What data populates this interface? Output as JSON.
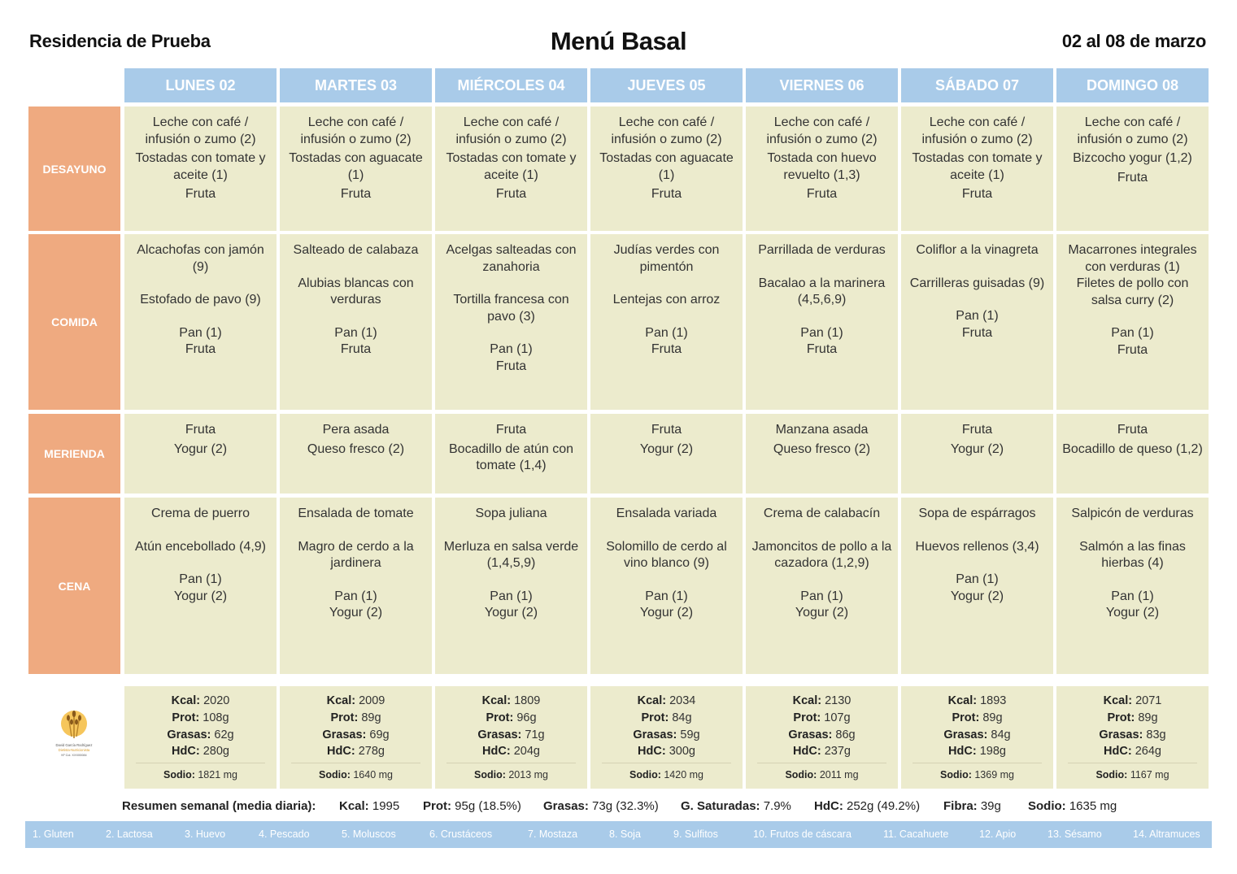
{
  "header": {
    "residence": "Residencia de Prueba",
    "title": "Menú Basal",
    "date_range": "02 al 08 de marzo"
  },
  "days": [
    "LUNES 02",
    "MARTES 03",
    "MIÉRCOLES 04",
    "JUEVES 05",
    "VIERNES 06",
    "SÁBADO 07",
    "DOMINGO 08"
  ],
  "meals": [
    "DESAYUNO",
    "COMIDA",
    "MERIENDA",
    "CENA"
  ],
  "menu": {
    "desayuno": [
      [
        "Leche con café / infusión o zumo (2)",
        "Tostadas con tomate y aceite (1)",
        "Fruta"
      ],
      [
        "Leche con café / infusión o zumo (2)",
        "Tostadas con aguacate (1)",
        "Fruta"
      ],
      [
        "Leche con café / infusión o zumo (2)",
        "Tostadas con tomate y aceite (1)",
        "Fruta"
      ],
      [
        "Leche con café / infusión o zumo (2)",
        "Tostadas con aguacate (1)",
        "Fruta"
      ],
      [
        "Leche con café / infusión o zumo (2)",
        "Tostada con huevo revuelto (1,3)",
        "Fruta"
      ],
      [
        "Leche con café / infusión o zumo (2)",
        "Tostadas con tomate y aceite (1)",
        "Fruta"
      ],
      [
        "Leche con café / infusión o zumo (2)",
        "Bizcocho yogur (1,2)",
        "Fruta"
      ]
    ],
    "comida": [
      [
        "Alcachofas con jamón (9)",
        "Estofado de pavo (9)",
        "Pan (1)",
        "Fruta"
      ],
      [
        "Salteado de calabaza",
        "Alubias blancas con verduras",
        "Pan (1)",
        "Fruta"
      ],
      [
        "Acelgas salteadas con zanahoria",
        "Tortilla francesa con pavo (3)",
        "Pan (1)",
        "Fruta"
      ],
      [
        "Judías verdes con pimentón",
        "Lentejas con arroz",
        "Pan (1)",
        "Fruta"
      ],
      [
        "Parrillada de verduras",
        "Bacalao a la marinera (4,5,6,9)",
        "Pan (1)",
        "Fruta"
      ],
      [
        "Coliflor a la vinagreta",
        "Carrilleras guisadas (9)",
        "Pan (1)",
        "Fruta"
      ],
      [
        "Macarrones integrales con verduras (1)",
        "Filetes de pollo con salsa curry (2)",
        "Pan (1)",
        "Fruta"
      ]
    ],
    "merienda": [
      [
        "Fruta",
        "Yogur (2)"
      ],
      [
        "Pera asada",
        "Queso fresco (2)"
      ],
      [
        "Fruta",
        "Bocadillo de atún con tomate (1,4)"
      ],
      [
        "Fruta",
        "Yogur (2)"
      ],
      [
        "Manzana asada",
        "Queso fresco (2)"
      ],
      [
        "Fruta",
        "Yogur (2)"
      ],
      [
        "Fruta",
        "Bocadillo de queso (1,2)"
      ]
    ],
    "cena": [
      [
        "Crema de puerro",
        "Atún encebollado (4,9)",
        "Pan (1)",
        "Yogur (2)"
      ],
      [
        "Ensalada de tomate",
        "Magro de cerdo a la jardinera",
        "Pan (1)",
        "Yogur (2)"
      ],
      [
        "Sopa juliana",
        "Merluza en salsa verde (1,4,5,9)",
        "Pan (1)",
        "Yogur (2)"
      ],
      [
        "Ensalada variada",
        "Solomillo de cerdo al vino blanco (9)",
        "Pan (1)",
        "Yogur (2)"
      ],
      [
        "Crema de calabacín",
        "Jamoncitos de pollo a la cazadora (1,2,9)",
        "Pan (1)",
        "Yogur (2)"
      ],
      [
        "Sopa de espárragos",
        "Huevos rellenos (3,4)",
        "Pan (1)",
        "Yogur (2)"
      ],
      [
        "Salpicón de verduras",
        "Salmón a las finas hierbas (4)",
        "Pan (1)",
        "Yogur (2)"
      ]
    ]
  },
  "nutrition_labels": {
    "kcal": "Kcal:",
    "prot": "Prot:",
    "grasas": "Grasas:",
    "hdc": "HdC:",
    "sodio": "Sodio:"
  },
  "nutrition": [
    {
      "kcal": "2020",
      "prot": "108g",
      "grasas": "62g",
      "hdc": "280g",
      "sodio": "1821 mg"
    },
    {
      "kcal": "2009",
      "prot": "89g",
      "grasas": "69g",
      "hdc": "278g",
      "sodio": "1640 mg"
    },
    {
      "kcal": "1809",
      "prot": "96g",
      "grasas": "71g",
      "hdc": "204g",
      "sodio": "2013 mg"
    },
    {
      "kcal": "2034",
      "prot": "84g",
      "grasas": "59g",
      "hdc": "300g",
      "sodio": "1420 mg"
    },
    {
      "kcal": "2130",
      "prot": "107g",
      "grasas": "86g",
      "hdc": "237g",
      "sodio": "2011 mg"
    },
    {
      "kcal": "1893",
      "prot": "89g",
      "grasas": "84g",
      "hdc": "198g",
      "sodio": "1369 mg"
    },
    {
      "kcal": "2071",
      "prot": "89g",
      "grasas": "83g",
      "hdc": "264g",
      "sodio": "1167 mg"
    }
  ],
  "logo": {
    "name": "David García Rodríguez",
    "role": "Dietista-Nutricionista",
    "reg": "Nº Col. XXX00084"
  },
  "summary": {
    "label": "Resumen semanal (media diaria):",
    "items": [
      {
        "label": "Kcal:",
        "value": "1995"
      },
      {
        "label": "Prot:",
        "value": "95g (18.5%)"
      },
      {
        "label": "Grasas:",
        "value": "73g (32.3%)"
      },
      {
        "label": "G. Saturadas:",
        "value": "7.9%"
      },
      {
        "label": "HdC:",
        "value": "252g (49.2%)"
      },
      {
        "label": "Fibra:",
        "value": "39g"
      },
      {
        "label": "Sodio:",
        "value": "1635 mg"
      }
    ]
  },
  "allergens": [
    "1. Gluten",
    "2. Lactosa",
    "3. Huevo",
    "4. Pescado",
    "5. Moluscos",
    "6. Crustáceos",
    "7. Mostaza",
    "8. Soja",
    "9. Sulfitos",
    "10. Frutos de cáscara",
    "11. Cacahuete",
    "12. Apio",
    "13. Sésamo",
    "14. Altramuces"
  ],
  "colors": {
    "day_header": "#a9cbe9",
    "meal_label": "#efaa80",
    "cell_bg": "#ecebcd",
    "allergen_bar": "#a9cbe9"
  }
}
